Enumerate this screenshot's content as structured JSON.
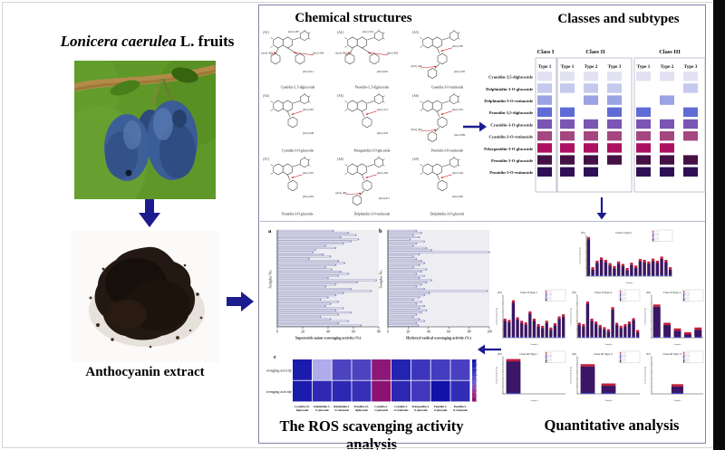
{
  "left": {
    "title_italic": "Lonicera caerulea",
    "title_rest": " L. fruits",
    "extract_label": "Anthocyanin extract",
    "fruit_photo": "blue-honeysuckle-berries-on-branch",
    "powder_photo": "dark-anthocyanin-powder-pile"
  },
  "colors": {
    "arrow": "#1c1c8e",
    "panel_border": "#8383ab",
    "structure_red": "#cc2020"
  },
  "chemical": {
    "title": "Chemical structures",
    "structures": [
      {
        "id": "(A1)",
        "name": "Cyanidin-3, 5-diglucoside",
        "mz_top": "(m/z) 287",
        "mz_left": "(m/z) 449",
        "mz_right": "(m/z) 449",
        "mz_total": "(m/z) 611",
        "sugar": "di"
      },
      {
        "id": "(A2)",
        "name": "Peonidin-3, 5-diglucoside",
        "mz_top": "(m/z) 301",
        "mz_left": "(m/z) 463",
        "mz_right": "(m/z) 463",
        "mz_total": "(m/z) 625",
        "sugar": "di"
      },
      {
        "id": "(A3)",
        "name": "Cyanidin-3-O-rutinoside",
        "mz_top": "(m/z) 287",
        "mz_left": "(m/z) 449",
        "mz_right": "",
        "mz_total": "(m/z) 595",
        "sugar": "rut"
      },
      {
        "id": "(A4)",
        "name": "Cyanidin-3-O-glucoside",
        "mz_top": "(m/z) 287",
        "mz_left": "",
        "mz_right": "",
        "mz_total": "(m/z) 449",
        "sugar": "glc"
      },
      {
        "id": "(A5)",
        "name": "Pelargonidin-3-O-glucoside",
        "mz_top": "(m/z) 271",
        "mz_left": "",
        "mz_right": "",
        "mz_total": "(m/z) 433",
        "sugar": "glc"
      },
      {
        "id": "(A6)",
        "name": "Peonidin-3-O-rutinoside",
        "mz_top": "(m/z) 301",
        "mz_left": "(m/z) 463",
        "mz_right": "",
        "mz_total": "(m/z) 609",
        "sugar": "rut"
      },
      {
        "id": "(A7)",
        "name": "Peonidin-3-O-glucoside",
        "mz_top": "(m/z) 301",
        "mz_left": "",
        "mz_right": "",
        "mz_total": "(m/z) 463",
        "sugar": "glc"
      },
      {
        "id": "(A8)",
        "name": "Delphinidin-3-O-rutinoside",
        "mz_top": "(m/z) 303",
        "mz_left": "(m/z) 465",
        "mz_right": "",
        "mz_total": "(m/z) 611",
        "sugar": "rut"
      },
      {
        "id": "(A9)",
        "name": "Delphinidin-3-O-glucosid",
        "mz_top": "(m/z) 303",
        "mz_left": "",
        "mz_right": "",
        "mz_total": "(m/z) 465",
        "sugar": "glc"
      }
    ]
  },
  "classes": {
    "title": "Classes and subtypes",
    "class_headers": [
      "Class I",
      "Class II",
      "Class III"
    ],
    "type_headers": [
      "Type 1",
      "Type 1",
      "Type 2",
      "Type 3",
      "Type 1",
      "Type 2",
      "Type 3"
    ],
    "row_labels": [
      "Cyanidin-3,5-diglucoside",
      "Delphinidin-3-O-glucoside",
      "Delphinidin-3-O-rutinoside",
      "Peonidin-3,5-diglucoside",
      "Cyanidin-3-O-glucoside",
      "Cyanidin-3-O-rutinoside",
      "Pelargonidin-3-O-glucoside",
      "Peonidin-3-O-glucoside",
      "Peonidin-3-O-rutinoside"
    ],
    "row_colors": [
      "#e2e2f3",
      "#c6c9ee",
      "#9aa3e3",
      "#5f6cd6",
      "#7a55b4",
      "#a4477f",
      "#ad1062",
      "#451144",
      "#2f0f55"
    ],
    "presence": [
      [
        1,
        1,
        1,
        1,
        1,
        1,
        1
      ],
      [
        1,
        1,
        1,
        1,
        0,
        0,
        1
      ],
      [
        1,
        0,
        1,
        1,
        0,
        1,
        0
      ],
      [
        1,
        1,
        0,
        1,
        1,
        0,
        1
      ],
      [
        1,
        1,
        1,
        1,
        1,
        1,
        1
      ],
      [
        1,
        1,
        1,
        1,
        1,
        1,
        1
      ],
      [
        1,
        1,
        1,
        1,
        1,
        1,
        0
      ],
      [
        1,
        1,
        1,
        1,
        1,
        1,
        1
      ],
      [
        1,
        1,
        1,
        0,
        1,
        1,
        1
      ]
    ]
  },
  "ros": {
    "title": "The ROS scavenging activity analysis",
    "panel_a": {
      "label": "a",
      "ylabel": "Samples No.",
      "xlabel": "Superoxide anion scavenging activity (%)",
      "xticks": [
        "0",
        "20",
        "40",
        "60",
        "80"
      ],
      "xmax": 80,
      "values": [
        44,
        56,
        62,
        50,
        64,
        58,
        52,
        38,
        46,
        30,
        28,
        36,
        42,
        25,
        48,
        53,
        46,
        38,
        43,
        50,
        56,
        48,
        40,
        78,
        63,
        46,
        38,
        58,
        74,
        52,
        46,
        40,
        34,
        48,
        42,
        38,
        52,
        46,
        58,
        48,
        34,
        42,
        56,
        48,
        66
      ]
    },
    "panel_b": {
      "label": "b",
      "ylabel": "Samples No.",
      "xlabel": "Hydroxyl radical scavenging activity (%)",
      "xticks": [
        "0",
        "20",
        "40",
        "60",
        "80",
        "100"
      ],
      "xmax": 100,
      "values": [
        28,
        33,
        25,
        31,
        22,
        36,
        28,
        25,
        38,
        43,
        100,
        31,
        25,
        28,
        33,
        36,
        31,
        25,
        38,
        33,
        28,
        36,
        31,
        43,
        38,
        33,
        28,
        36,
        98,
        41,
        36,
        31,
        25,
        33,
        28,
        36,
        31,
        38,
        33,
        28,
        25,
        31,
        36,
        28,
        30
      ]
    },
    "panel_c": {
      "label": "c",
      "row_labels": [
        "•O₂⁻ scavenging activity",
        "•OH scavenging activity"
      ],
      "col_labels_line1": [
        "Cyanidin-3,5-",
        "Delphinidin-3-",
        "Delphinidin-3-",
        "Peonidin-3,5-",
        "Cyanidin-3-",
        "Cyanidin-3-",
        "Pelargonidin-3-",
        "Peonidin-3-",
        "Peonidin-3-"
      ],
      "col_labels_line2": [
        "diglucoside",
        "O-glucoside",
        "O-rutinoside",
        "diglucoside",
        "O-glucoside",
        "O-rutinoside",
        "O-glucoside",
        "O-glucoside",
        "O-rutinoside"
      ],
      "row1_colors": [
        "#1b1bad",
        "#aeaceb",
        "#4b43c0",
        "#4b43c0",
        "#8c1779",
        "#2323b2",
        "#3d36bc",
        "#443cbf",
        "#4840c1"
      ],
      "row2_colors": [
        "#1b1bad",
        "#2f28b5",
        "#2d27b4",
        "#362fb8",
        "#8c1272",
        "#2c26b3",
        "#4138bd",
        "#1212a8",
        "#332cb6"
      ],
      "colorbar_colors": [
        "#1a1aae",
        "#2323b2",
        "#3030b8",
        "#4040bf",
        "#5552c6",
        "#6f5cc8",
        "#8a52b4",
        "#9b3c96",
        "#a02080",
        "#8c1272"
      ]
    }
  },
  "quant": {
    "title": "Quantitative analysis",
    "legend_labels": [
      "Cy-3,5-diglc",
      "Dp-3-O-glc",
      "Dp-3-O-rut",
      "Pn-3,5-diglc",
      "Cy-3-O-glc",
      "Cy-3-O-rut",
      "Pg-3-O-glc",
      "Pn-3-O-glc",
      "Pn-3-O-rut"
    ],
    "legend_colors": [
      "#c62828",
      "#b03a8c",
      "#7e3fa8",
      "#5848c2",
      "#3d3dbb",
      "#6a55c8",
      "#8a4898",
      "#47175c",
      "#2c1042"
    ],
    "y_label": "Content (mg/100 g)",
    "x_label": "Samples",
    "bar_colors": {
      "base": "#3947c9",
      "body": "#3b1566",
      "cap": "#c21f3a"
    },
    "charts": [
      {
        "id": "(B1)",
        "title": "Class I Type 1",
        "values": [
          96,
          22,
          38,
          46,
          40,
          32,
          25,
          36,
          30,
          20,
          33,
          26,
          42,
          40,
          36,
          43,
          38,
          48,
          40,
          22
        ]
      },
      {
        "id": "(B2)",
        "title": "Class II Type 1",
        "values": [
          45,
          42,
          88,
          48,
          40,
          36,
          62,
          45,
          32,
          28,
          40,
          24,
          34,
          50,
          55
        ]
      },
      {
        "id": "(B3)",
        "title": "Class II Type 2",
        "values": [
          35,
          32,
          85,
          45,
          38,
          30,
          25,
          20,
          72,
          35,
          28,
          32,
          38,
          46,
          18
        ]
      },
      {
        "id": "(B4)",
        "title": "Class II Type 3",
        "values": [
          78,
          35,
          22,
          13,
          24
        ]
      },
      {
        "id": "(B5)",
        "title": "Class III Type 1",
        "values": [
          94,
          0,
          0
        ]
      },
      {
        "id": "(B6)",
        "title": "Class III Type 2",
        "values": [
          80,
          28,
          0
        ]
      },
      {
        "id": "(B7)",
        "title": "Class III Type 3",
        "values": [
          0,
          26,
          0
        ]
      }
    ]
  }
}
